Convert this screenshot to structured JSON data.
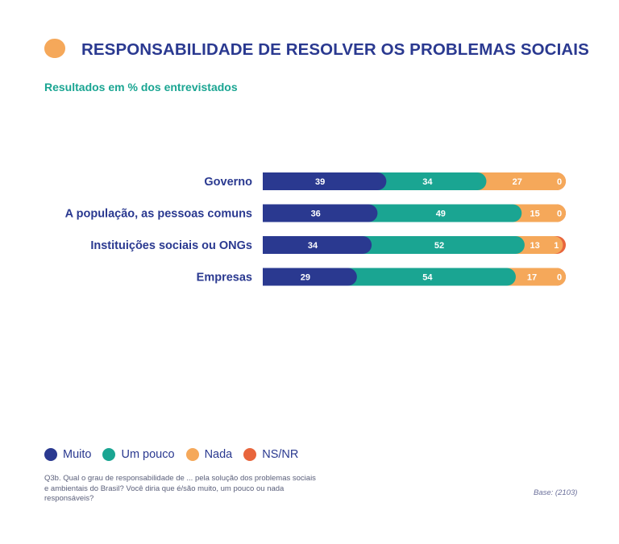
{
  "header": {
    "title": "RESPONSABILIDADE DE RESOLVER OS PROBLEMAS SOCIAIS",
    "subtitle": "Resultados em % dos entrevistados"
  },
  "colors": {
    "title_accent": "#f5a85a",
    "title_text": "#2a3990",
    "subtitle_text": "#1aa592"
  },
  "chart_data": {
    "type": "bar",
    "orientation": "horizontal",
    "stacked": true,
    "categories": [
      "Governo",
      "A população, as pessoas comuns",
      "Instituições sociais ou ONGs",
      "Empresas"
    ],
    "series": [
      {
        "name": "Muito",
        "color": "#2a3990",
        "values": [
          39,
          36,
          34,
          29
        ]
      },
      {
        "name": "Um pouco",
        "color": "#1aa592",
        "values": [
          34,
          49,
          52,
          54
        ]
      },
      {
        "name": "Nada",
        "color": "#f5a85a",
        "values": [
          27,
          15,
          13,
          17
        ]
      },
      {
        "name": "NS/NR",
        "color": "#e8653c",
        "values": [
          0,
          0,
          1,
          0
        ]
      }
    ],
    "xlim": [
      0,
      100
    ],
    "grid": false,
    "legend_position": "bottom-left"
  },
  "legend": [
    {
      "label": "Muito",
      "color": "#2a3990"
    },
    {
      "label": "Um pouco",
      "color": "#1aa592"
    },
    {
      "label": "Nada",
      "color": "#f5a85a"
    },
    {
      "label": "NS/NR",
      "color": "#e8653c"
    }
  ],
  "footer": {
    "note": "Q3b. Qual o grau de responsabilidade de ... pela solução dos problemas sociais e ambientais do Brasil? Você diria que é/são muito, um pouco ou nada responsáveis?",
    "base": "Base: (2103)"
  }
}
